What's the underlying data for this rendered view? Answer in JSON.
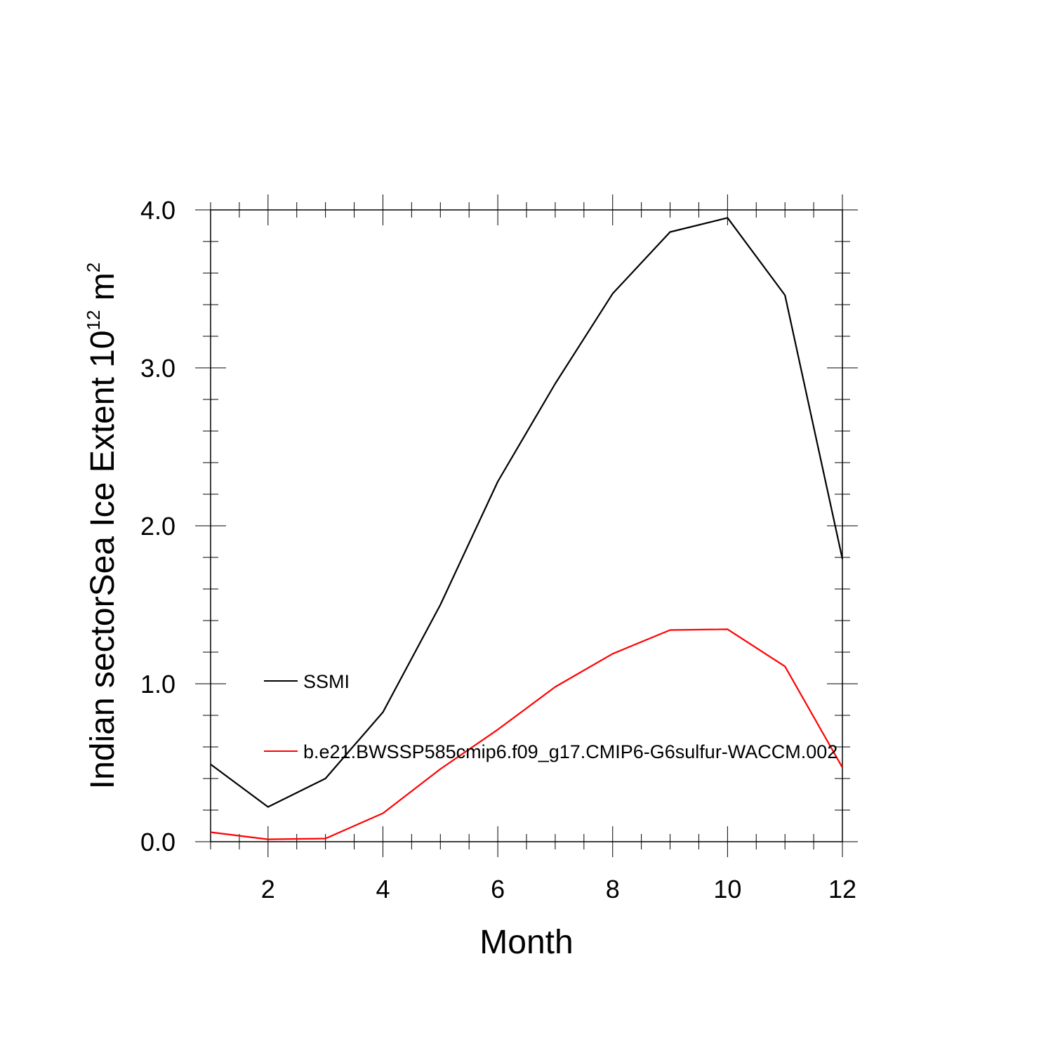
{
  "chart_data": {
    "type": "line",
    "title": "",
    "xlabel": "Month",
    "ylabel": {
      "main": "Indian sectorSea Ice Extent 10",
      "exp": "12",
      "unit": " m",
      "unit_exp": "2"
    },
    "xlim": [
      1,
      12
    ],
    "ylim": [
      0,
      4
    ],
    "x_ticks": [
      2,
      4,
      6,
      8,
      10,
      12
    ],
    "x_tick_labels": [
      "2",
      "4",
      "6",
      "8",
      "10",
      "12"
    ],
    "y_ticks": [
      0,
      1,
      2,
      3,
      4
    ],
    "y_tick_labels": [
      "0.0",
      "1.0",
      "2.0",
      "3.0",
      "4.0"
    ],
    "grid": false,
    "legend_position": "center-left",
    "x": [
      1,
      2,
      3,
      4,
      5,
      6,
      7,
      8,
      9,
      10,
      11,
      12
    ],
    "series": [
      {
        "name": "SSMI",
        "color": "#000000",
        "values": [
          0.49,
          0.22,
          0.4,
          0.82,
          1.5,
          2.28,
          2.9,
          3.47,
          3.86,
          3.95,
          3.46,
          1.79
        ]
      },
      {
        "name": "b.e21.BWSSP585cmip6.f09_g17.CMIP6-G6sulfur-WACCM.002",
        "color": "#ff0000",
        "values": [
          0.06,
          0.015,
          0.02,
          0.18,
          0.46,
          0.71,
          0.98,
          1.19,
          1.34,
          1.345,
          1.11,
          0.47
        ]
      }
    ]
  }
}
